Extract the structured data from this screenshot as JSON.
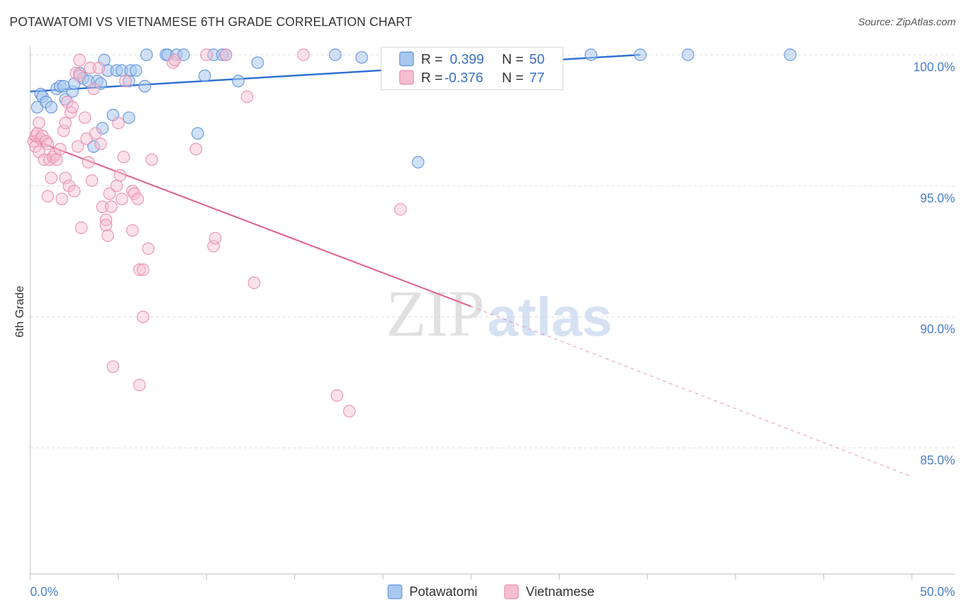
{
  "title": "POTAWATOMI VS VIETNAMESE 6TH GRADE CORRELATION CHART",
  "source": "Source: ZipAtlas.com",
  "watermark": {
    "zip": "ZIP",
    "atlas": "atlas"
  },
  "colors": {
    "potawatomi_fill": "#a9c8f0",
    "potawatomi_stroke": "#5b8fd9",
    "potawatomi_line": "#2f6fd1",
    "vietnamese_fill": "#f6bed1",
    "vietnamese_stroke": "#e88aab",
    "vietnamese_line": "#e06694",
    "tick_text": "#4a7cc9",
    "grid": "#dddddd"
  },
  "legend": {
    "r_label": "R =",
    "n_label": "N =",
    "potawatomi": {
      "r": "0.399",
      "n": "50"
    },
    "vietnamese": {
      "r": "-0.376",
      "n": "77"
    }
  },
  "bottom_legend": [
    "Potawatomi",
    "Vietnamese"
  ],
  "chart_data": {
    "type": "scatter",
    "title": "POTAWATOMI VS VIETNAMESE 6TH GRADE CORRELATION CHART",
    "xlabel": "",
    "ylabel": "6th Grade",
    "xlim": [
      0,
      50
    ],
    "ylim": [
      80.0,
      100.8
    ],
    "x_tick_labels": [
      "0.0%",
      "50.0%"
    ],
    "y_ticks": [
      100,
      95,
      90,
      85
    ],
    "y_tick_labels": [
      "100.0%",
      "95.0%",
      "90.0%",
      "85.0%"
    ],
    "grid": true,
    "series": [
      {
        "name": "Potawatomi",
        "r": 0.399,
        "n": 50,
        "trend": {
          "x": [
            0,
            34.6
          ],
          "y": [
            98.6,
            100.0
          ]
        },
        "points": [
          [
            0.4,
            98.0
          ],
          [
            0.6,
            98.5
          ],
          [
            0.7,
            98.4
          ],
          [
            0.9,
            98.2
          ],
          [
            1.2,
            98.0
          ],
          [
            1.5,
            98.7
          ],
          [
            1.7,
            98.8
          ],
          [
            1.9,
            98.8
          ],
          [
            2.0,
            98.3
          ],
          [
            2.4,
            98.6
          ],
          [
            2.5,
            98.9
          ],
          [
            2.8,
            99.3
          ],
          [
            3.0,
            99.1
          ],
          [
            3.3,
            99.0
          ],
          [
            3.8,
            99.0
          ],
          [
            4.0,
            98.9
          ],
          [
            4.2,
            99.8
          ],
          [
            4.4,
            99.4
          ],
          [
            4.9,
            99.4
          ],
          [
            5.2,
            99.4
          ],
          [
            5.6,
            99.0
          ],
          [
            5.7,
            99.4
          ],
          [
            6.0,
            99.4
          ],
          [
            6.5,
            98.8
          ],
          [
            6.6,
            100.0
          ],
          [
            7.7,
            100.0
          ],
          [
            7.8,
            100.0
          ],
          [
            8.3,
            100.0
          ],
          [
            8.7,
            100.0
          ],
          [
            9.9,
            99.2
          ],
          [
            10.4,
            100.0
          ],
          [
            10.9,
            100.0
          ],
          [
            11.1,
            100.0
          ],
          [
            11.8,
            99.0
          ],
          [
            12.9,
            99.7
          ],
          [
            17.3,
            100.0
          ],
          [
            18.8,
            99.9
          ],
          [
            21.3,
            99.9
          ],
          [
            21.5,
            100.0
          ],
          [
            22.0,
            95.9
          ],
          [
            25.6,
            100.0
          ],
          [
            31.8,
            100.0
          ],
          [
            34.6,
            100.0
          ],
          [
            37.3,
            100.0
          ],
          [
            43.1,
            100.0
          ],
          [
            9.5,
            97.0
          ],
          [
            5.6,
            97.6
          ],
          [
            4.7,
            97.7
          ],
          [
            4.1,
            97.2
          ],
          [
            3.6,
            96.5
          ]
        ]
      },
      {
        "name": "Vietnamese",
        "r": -0.376,
        "n": 77,
        "trend": {
          "x": [
            0,
            25
          ],
          "y": [
            96.8,
            90.4
          ]
        },
        "trend_ext": {
          "x": [
            25,
            50
          ],
          "y": [
            90.4,
            83.9
          ]
        },
        "points": [
          [
            0.2,
            96.7
          ],
          [
            0.3,
            96.5
          ],
          [
            0.3,
            96.9
          ],
          [
            0.4,
            97.0
          ],
          [
            0.5,
            96.3
          ],
          [
            0.5,
            97.4
          ],
          [
            0.6,
            96.8
          ],
          [
            0.7,
            96.9
          ],
          [
            0.8,
            96.0
          ],
          [
            0.9,
            96.7
          ],
          [
            1.0,
            96.6
          ],
          [
            1.0,
            94.6
          ],
          [
            1.1,
            96.0
          ],
          [
            1.2,
            95.3
          ],
          [
            1.3,
            96.1
          ],
          [
            1.4,
            96.2
          ],
          [
            1.5,
            96.0
          ],
          [
            1.7,
            96.4
          ],
          [
            1.8,
            94.5
          ],
          [
            1.9,
            97.1
          ],
          [
            2.0,
            97.4
          ],
          [
            2.0,
            95.3
          ],
          [
            2.1,
            98.2
          ],
          [
            2.2,
            95.0
          ],
          [
            2.3,
            97.8
          ],
          [
            2.4,
            98.0
          ],
          [
            2.5,
            94.8
          ],
          [
            2.6,
            99.3
          ],
          [
            2.7,
            96.5
          ],
          [
            2.8,
            99.2
          ],
          [
            2.8,
            99.8
          ],
          [
            2.9,
            93.4
          ],
          [
            3.1,
            97.6
          ],
          [
            3.2,
            96.8
          ],
          [
            3.3,
            95.9
          ],
          [
            3.4,
            99.5
          ],
          [
            3.5,
            95.2
          ],
          [
            3.6,
            98.7
          ],
          [
            3.7,
            97.0
          ],
          [
            3.9,
            99.5
          ],
          [
            4.0,
            96.6
          ],
          [
            4.1,
            94.2
          ],
          [
            4.3,
            93.7
          ],
          [
            4.3,
            93.5
          ],
          [
            4.4,
            93.1
          ],
          [
            4.5,
            94.7
          ],
          [
            4.6,
            94.2
          ],
          [
            4.9,
            95.0
          ],
          [
            5.0,
            97.4
          ],
          [
            5.1,
            95.4
          ],
          [
            5.2,
            94.5
          ],
          [
            5.3,
            96.1
          ],
          [
            5.4,
            99.0
          ],
          [
            5.8,
            94.8
          ],
          [
            5.8,
            93.3
          ],
          [
            5.9,
            94.7
          ],
          [
            6.1,
            94.5
          ],
          [
            6.2,
            91.8
          ],
          [
            6.2,
            87.4
          ],
          [
            6.4,
            91.8
          ],
          [
            6.4,
            90.0
          ],
          [
            6.7,
            92.6
          ],
          [
            6.9,
            96.0
          ],
          [
            4.7,
            88.1
          ],
          [
            8.1,
            99.7
          ],
          [
            8.2,
            99.8
          ],
          [
            9.4,
            96.4
          ],
          [
            10.0,
            100.0
          ],
          [
            10.4,
            92.7
          ],
          [
            10.5,
            93.0
          ],
          [
            11.1,
            100.0
          ],
          [
            12.3,
            98.4
          ],
          [
            12.7,
            91.3
          ],
          [
            15.5,
            100.0
          ],
          [
            17.4,
            87.0
          ],
          [
            18.1,
            86.4
          ],
          [
            21.0,
            94.1
          ]
        ]
      }
    ]
  }
}
